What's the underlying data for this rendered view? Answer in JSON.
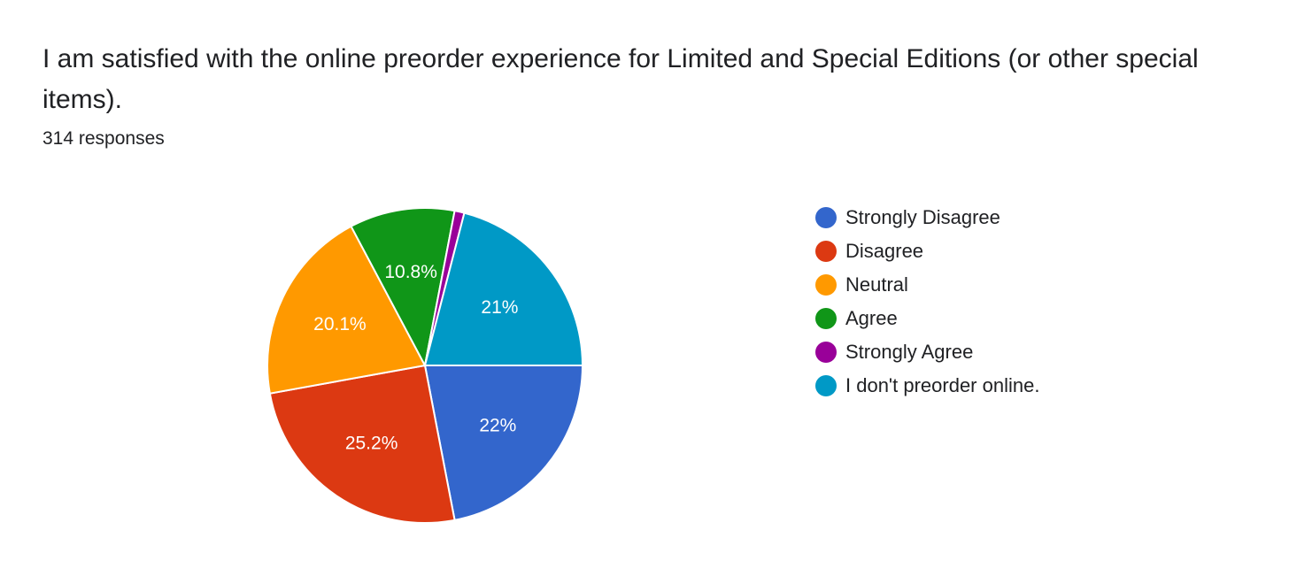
{
  "chart_data": {
    "type": "pie",
    "title": "I am satisfied with the online preorder experience for Limited and Special Editions (or other special items).",
    "subtitle": "314 responses",
    "categories": [
      "Strongly Disagree",
      "Disagree",
      "Neutral",
      "Agree",
      "Strongly Agree",
      "I don't preorder online."
    ],
    "values": [
      22,
      25.2,
      20.1,
      10.8,
      1,
      21
    ],
    "value_labels": [
      "22%",
      "25.2%",
      "20.1%",
      "10.8%",
      null,
      "21%"
    ],
    "colors": [
      "#3366cc",
      "#dc3912",
      "#ff9900",
      "#109618",
      "#990099",
      "#0099c6"
    ],
    "legend": "right"
  }
}
